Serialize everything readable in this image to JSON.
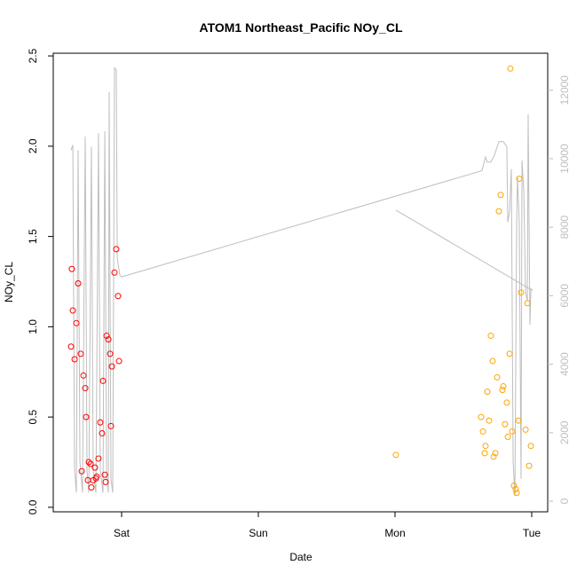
{
  "chart_data": {
    "type": "scatter",
    "title": "ATOM1 Northeast_Pacific NOy_CL",
    "x_label": "Date",
    "y_label": "NOy_CL",
    "xlim": [
      0.5,
      4.117
    ],
    "xticks": [
      {
        "value": 1,
        "label": "Sat"
      },
      {
        "value": 2,
        "label": "Sun"
      },
      {
        "value": 3,
        "label": "Mon"
      },
      {
        "value": 4,
        "label": "Tue"
      }
    ],
    "ylim": [
      -0.025,
      2.515
    ],
    "yticks": [
      {
        "value": 0,
        "label": "0.0"
      },
      0.5,
      {
        "value": 1,
        "label": "1.0"
      },
      1.5,
      {
        "value": 2,
        "label": "2.0"
      },
      2.5
    ],
    "y2lim": [
      -310,
      13080
    ],
    "y2ticks": [
      0,
      2000,
      4000,
      6000,
      8000,
      10000,
      12000
    ],
    "series": [
      {
        "type": "scatter",
        "color": "#ff0000",
        "x": [
          0.63,
          0.636,
          0.643,
          0.656,
          0.669,
          0.682,
          0.701,
          0.708,
          0.721,
          0.734,
          0.74,
          0.753,
          0.76,
          0.773,
          0.779,
          0.792,
          0.805,
          0.812,
          0.818,
          0.831,
          0.844,
          0.857,
          0.864,
          0.877,
          0.883,
          0.89,
          0.903,
          0.916,
          0.922,
          0.929,
          0.948,
          0.961,
          0.974,
          0.981
        ],
        "values": [
          0.89,
          1.32,
          1.09,
          0.82,
          1.02,
          1.24,
          0.85,
          0.2,
          0.73,
          0.66,
          0.5,
          0.15,
          0.25,
          0.24,
          0.11,
          0.15,
          0.22,
          0.16,
          0.17,
          0.27,
          0.47,
          0.41,
          0.7,
          0.18,
          0.14,
          0.95,
          0.93,
          0.85,
          0.45,
          0.78,
          1.3,
          1.43,
          1.17,
          0.81
        ]
      },
      {
        "type": "scatter",
        "color": "#ffa500",
        "x": [
          3.006,
          3.63,
          3.643,
          3.656,
          3.662,
          3.675,
          3.688,
          3.701,
          3.714,
          3.721,
          3.734,
          3.747,
          3.76,
          3.773,
          3.786,
          3.792,
          3.805,
          3.818,
          3.825,
          3.838,
          3.844,
          3.857,
          3.87,
          3.883,
          3.89,
          3.903,
          3.909,
          3.922,
          3.955,
          3.968,
          3.981,
          3.994
        ],
        "values": [
          0.29,
          0.5,
          0.42,
          0.3,
          0.34,
          0.64,
          0.48,
          0.95,
          0.81,
          0.28,
          0.3,
          0.72,
          1.64,
          1.73,
          0.65,
          0.67,
          0.46,
          0.58,
          0.39,
          0.85,
          2.43,
          0.42,
          0.12,
          0.1,
          0.08,
          0.48,
          1.82,
          1.19,
          0.43,
          1.13,
          0.23,
          0.34
        ]
      },
      {
        "type": "line",
        "color": "#bebebe",
        "axis": "y2",
        "x": [
          0.63,
          0.643,
          0.656,
          0.669,
          0.682,
          0.695,
          0.714,
          0.734,
          0.747,
          0.76,
          0.779,
          0.792,
          0.812,
          0.831,
          0.844,
          0.864,
          0.877,
          0.89,
          0.903,
          0.909,
          0.922,
          0.935,
          0.948,
          0.961,
          0.968,
          0.987,
          1.0,
          3.636,
          3.662,
          3.675,
          3.701,
          3.727,
          3.76,
          3.792,
          3.818,
          3.825,
          3.838,
          3.851,
          3.864,
          3.877,
          3.89,
          3.896,
          3.909,
          3.922,
          3.929,
          3.942,
          3.955,
          3.968,
          3.974,
          3.987,
          3.994,
          4.006,
          3.006
        ],
        "values": [
          10250,
          10400,
          900,
          250,
          10250,
          1150,
          250,
          10650,
          900,
          250,
          10350,
          900,
          250,
          10750,
          900,
          250,
          10800,
          900,
          250,
          11950,
          650,
          250,
          12650,
          12600,
          7100,
          6600,
          6550,
          9650,
          10050,
          9900,
          9900,
          10100,
          10500,
          10500,
          10350,
          8150,
          8450,
          9700,
          1150,
          150,
          8150,
          9450,
          8150,
          650,
          9950,
          9050,
          6100,
          5850,
          11300,
          5150,
          6200,
          6150,
          8500
        ]
      }
    ]
  }
}
